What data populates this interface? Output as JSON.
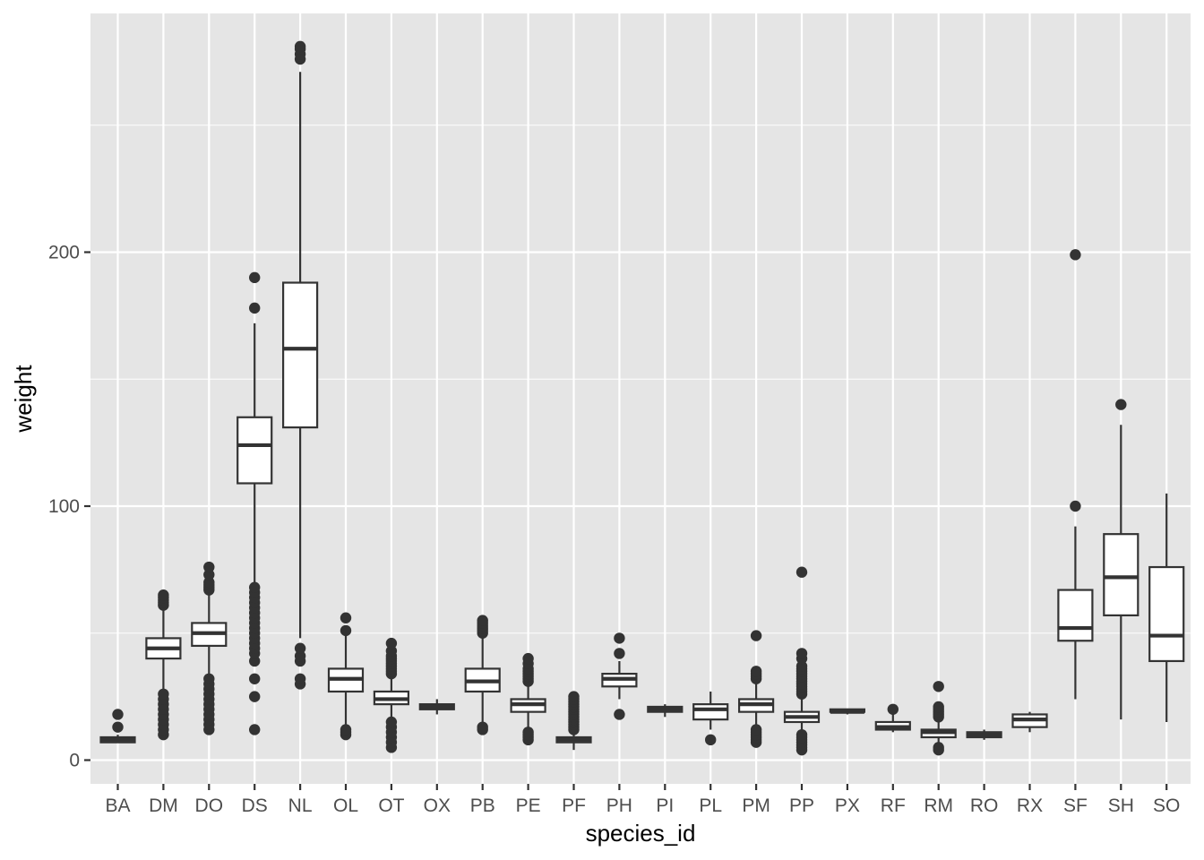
{
  "chart_data": {
    "type": "boxplot",
    "xlabel": "species_id",
    "ylabel": "weight",
    "ylim": [
      -10,
      294
    ],
    "yticks": [
      0,
      100,
      200
    ],
    "grid": true,
    "colors": {
      "panel": "#e5e5e5",
      "grid_major": "#ffffff",
      "box_fill": "#ffffff",
      "box_line": "#333333",
      "outlier": "#333333"
    },
    "categories": [
      "BA",
      "DM",
      "DO",
      "DS",
      "NL",
      "OL",
      "OT",
      "OX",
      "PB",
      "PE",
      "PF",
      "PH",
      "PI",
      "PL",
      "PM",
      "PP",
      "PX",
      "RF",
      "RM",
      "RO",
      "RX",
      "SF",
      "SH",
      "SO"
    ],
    "boxes": [
      {
        "lower": 7,
        "q1": 7,
        "median": 8,
        "q3": 9,
        "upper": 10,
        "outliers": [
          13,
          18
        ]
      },
      {
        "lower": 11,
        "q1": 40,
        "median": 44,
        "q3": 48,
        "upper": 60,
        "outliers": [
          10,
          12,
          14,
          16,
          18,
          20,
          22,
          24,
          26,
          61,
          62,
          63,
          64,
          65
        ]
      },
      {
        "lower": 33,
        "q1": 45,
        "median": 50,
        "q3": 54,
        "upper": 66,
        "outliers": [
          12,
          14,
          16,
          18,
          20,
          22,
          24,
          26,
          28,
          30,
          32,
          67,
          68,
          69,
          70,
          73,
          76
        ]
      },
      {
        "lower": 70,
        "q1": 109,
        "median": 124,
        "q3": 135,
        "upper": 172,
        "outliers": [
          12,
          25,
          32,
          39,
          42,
          44,
          46,
          48,
          50,
          52,
          54,
          56,
          58,
          60,
          62,
          64,
          66,
          68,
          178,
          190
        ]
      },
      {
        "lower": 48,
        "q1": 131,
        "median": 162,
        "q3": 188,
        "upper": 271,
        "outliers": [
          30,
          32,
          39,
          41,
          44,
          276,
          278,
          280,
          281
        ]
      },
      {
        "lower": 13,
        "q1": 27,
        "median": 32,
        "q3": 36,
        "upper": 49,
        "outliers": [
          10,
          11,
          12,
          51,
          56
        ]
      },
      {
        "lower": 16,
        "q1": 22,
        "median": 24,
        "q3": 27,
        "upper": 33,
        "outliers": [
          5,
          7,
          9,
          11,
          13,
          15,
          34,
          35,
          36,
          37,
          38,
          39,
          40,
          41,
          43,
          46
        ]
      },
      {
        "lower": 18,
        "q1": 20,
        "median": 21,
        "q3": 22,
        "upper": 24,
        "outliers": []
      },
      {
        "lower": 15,
        "q1": 27,
        "median": 31,
        "q3": 36,
        "upper": 48,
        "outliers": [
          12,
          13,
          50,
          51,
          52,
          53,
          54,
          55
        ]
      },
      {
        "lower": 13,
        "q1": 19,
        "median": 22,
        "q3": 24,
        "upper": 30,
        "outliers": [
          8,
          9,
          10,
          11,
          31,
          32,
          33,
          34,
          35,
          36,
          38,
          40
        ]
      },
      {
        "lower": 4,
        "q1": 7,
        "median": 8,
        "q3": 9,
        "upper": 11,
        "outliers": [
          12,
          13,
          14,
          15,
          16,
          17,
          18,
          19,
          20,
          21,
          22,
          23,
          24,
          25
        ]
      },
      {
        "lower": 24,
        "q1": 29,
        "median": 32,
        "q3": 34,
        "upper": 39,
        "outliers": [
          18,
          42,
          48
        ]
      },
      {
        "lower": 17,
        "q1": 19,
        "median": 20,
        "q3": 21,
        "upper": 22,
        "outliers": []
      },
      {
        "lower": 12,
        "q1": 16,
        "median": 20,
        "q3": 22,
        "upper": 27,
        "outliers": [
          8
        ]
      },
      {
        "lower": 13,
        "q1": 19,
        "median": 22,
        "q3": 24,
        "upper": 31,
        "outliers": [
          7,
          8,
          9,
          10,
          11,
          12,
          32,
          33,
          34,
          35,
          49
        ]
      },
      {
        "lower": 11,
        "q1": 15,
        "median": 17,
        "q3": 19,
        "upper": 25,
        "outliers": [
          4,
          5,
          6,
          7,
          8,
          9,
          10,
          26,
          27,
          28,
          29,
          30,
          31,
          32,
          33,
          34,
          35,
          36,
          37,
          40,
          42,
          74
        ]
      },
      {
        "lower": 18,
        "q1": 19,
        "median": 19,
        "q3": 20,
        "upper": 20,
        "outliers": []
      },
      {
        "lower": 11,
        "q1": 12,
        "median": 13,
        "q3": 15,
        "upper": 18,
        "outliers": [
          20
        ]
      },
      {
        "lower": 6,
        "q1": 9,
        "median": 11,
        "q3": 12,
        "upper": 16,
        "outliers": [
          4,
          5,
          17,
          18,
          19,
          20,
          21,
          29
        ]
      },
      {
        "lower": 8,
        "q1": 9,
        "median": 10,
        "q3": 11,
        "upper": 12,
        "outliers": []
      },
      {
        "lower": 11,
        "q1": 13,
        "median": 16,
        "q3": 18,
        "upper": 19,
        "outliers": []
      },
      {
        "lower": 24,
        "q1": 47,
        "median": 52,
        "q3": 67,
        "upper": 92,
        "outliers": [
          100,
          199
        ]
      },
      {
        "lower": 16,
        "q1": 57,
        "median": 72,
        "q3": 89,
        "upper": 132,
        "outliers": [
          140
        ]
      },
      {
        "lower": 15,
        "q1": 39,
        "median": 49,
        "q3": 76,
        "upper": 105,
        "outliers": []
      }
    ]
  }
}
